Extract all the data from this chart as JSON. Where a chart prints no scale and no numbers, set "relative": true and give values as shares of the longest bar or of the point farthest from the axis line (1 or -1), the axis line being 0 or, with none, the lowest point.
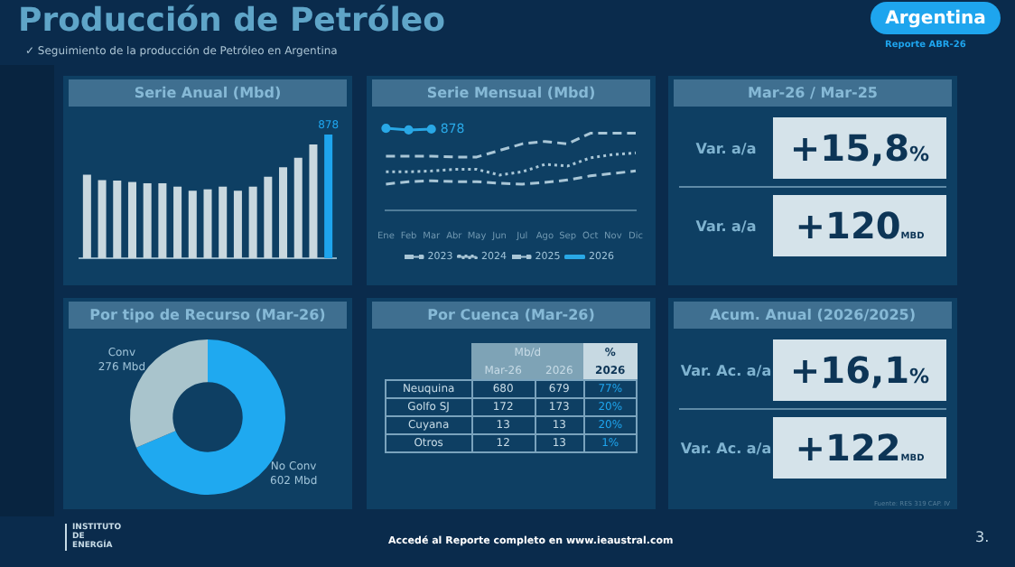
{
  "chart_data": [
    {
      "type": "other",
      "title": "Producción de Petróleo",
      "subtitle": "✓ Seguimiento de la producción de Petróleo en Argentina",
      "annotations": [
        "Argentina",
        "Reporte ABR-26",
        "INSTITUTO DE ENERGÍA",
        "Accedé al Reporte completo en www.ieaustral.com",
        "3."
      ]
    },
    {
      "type": "bar",
      "title": "Serie Anual (Mbd)",
      "tick_labels": false,
      "categories": [
        null,
        null,
        null,
        null,
        null,
        null,
        null,
        null,
        null,
        null,
        null,
        null,
        null,
        null,
        null,
        null,
        null
      ],
      "values": [
        593,
        555,
        551,
        541,
        532,
        532,
        508,
        479,
        489,
        508,
        479,
        508,
        579,
        645,
        712,
        807,
        878
      ],
      "colors": [
        "#c9d8df",
        "#c9d8df",
        "#c9d8df",
        "#c9d8df",
        "#c9d8df",
        "#c9d8df",
        "#c9d8df",
        "#c9d8df",
        "#c9d8df",
        "#c9d8df",
        "#c9d8df",
        "#c9d8df",
        "#c9d8df",
        "#c9d8df",
        "#c9d8df",
        "#c9d8df",
        "#1ea5ee"
      ],
      "value_labels": [
        null,
        null,
        null,
        null,
        null,
        null,
        null,
        null,
        null,
        null,
        null,
        null,
        null,
        null,
        null,
        null,
        "878"
      ]
    },
    {
      "type": "line",
      "title": "Serie Mensual (Mbd)",
      "tick_labels": "x",
      "legend": "bottom",
      "relative": true,
      "annotations": [
        {
          "text": "878",
          "x": "Mar"
        }
      ],
      "categories": [
        "Ene",
        "Feb",
        "Mar",
        "Abr",
        "May",
        "Jun",
        "Jul",
        "Ago",
        "Sep",
        "Oct",
        "Nov",
        "Dic"
      ],
      "series": [
        {
          "name": "2023",
          "color": "#a9c6d6",
          "line_style": "dashed",
          "marker": "none",
          "values": [
            0.32,
            0.35,
            0.36,
            0.35,
            0.35,
            0.33,
            0.32,
            0.34,
            0.37,
            0.42,
            0.45,
            0.48
          ]
        },
        {
          "name": "2024",
          "color": "#a9c6d6",
          "line_style": "dotted",
          "marker": "none",
          "values": [
            0.47,
            0.47,
            0.48,
            0.5,
            0.5,
            0.43,
            0.47,
            0.56,
            0.54,
            0.64,
            0.68,
            0.7
          ]
        },
        {
          "name": "2025",
          "color": "#a9c6d6",
          "line_style": "dashed",
          "marker": "none",
          "values": [
            0.66,
            0.66,
            0.66,
            0.65,
            0.65,
            0.73,
            0.81,
            0.84,
            0.81,
            0.94,
            0.94,
            0.94
          ]
        },
        {
          "name": "2026",
          "color": "#29a8e6",
          "line_style": "solid",
          "marker": "circle",
          "values": [
            1,
            0.98,
            0.99,
            null,
            null,
            null,
            null,
            null,
            null,
            null,
            null,
            null
          ]
        }
      ]
    },
    {
      "type": "donut",
      "title": "Por tipo de Recurso  (Mar-26)",
      "categories": [
        "No Conv",
        "Conv"
      ],
      "values": [
        602,
        276
      ],
      "colors": [
        "#1fa9f0",
        "#a9c4cc"
      ],
      "value_labels": [
        "602 Mbd",
        "276 Mbd"
      ]
    },
    {
      "type": "other",
      "title": "Por Cuenca (Mar-26)",
      "annotations": [
        "Mb/d",
        "%",
        "Mar-26",
        "2026",
        "2026",
        "Neuquina",
        "680",
        "679",
        "77%",
        "Golfo SJ",
        "172",
        "173",
        "20%",
        "Cuyana",
        "13",
        "13",
        "20%",
        "Otros",
        "12",
        "13",
        "1%"
      ]
    },
    {
      "type": "other",
      "title": "Mar-26 / Mar-25",
      "annotations": [
        "Var. a/a",
        "+15,8%",
        "Var. a/a",
        "+120MBD"
      ]
    },
    {
      "type": "other",
      "title": "Acum. Anual (2026/2025)",
      "annotations": [
        "Var. Ac. a/a",
        "+16,1%",
        "Var. Ac. a/a",
        "+122MBD",
        "Fuente: RES 319 CAP. IV"
      ]
    }
  ]
}
